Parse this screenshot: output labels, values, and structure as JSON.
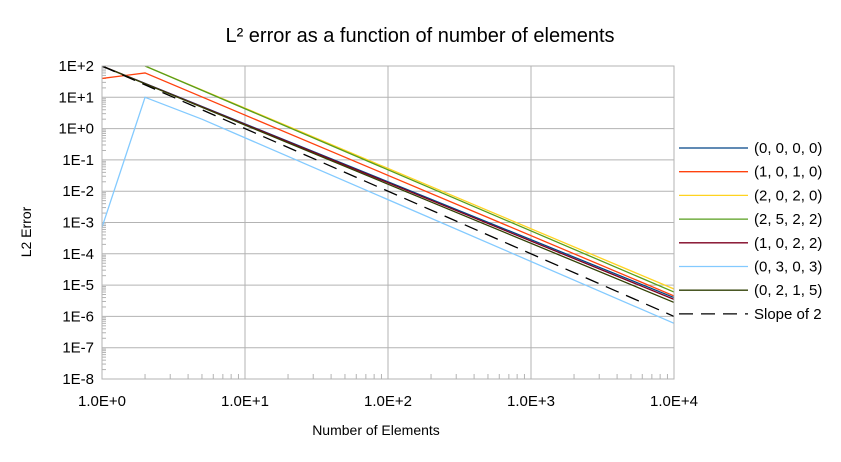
{
  "chart_data": {
    "type": "line",
    "title": "L² error as a function of number of elements",
    "xlabel": "Number of Elements",
    "ylabel": "L2 Error",
    "x_scale": "log",
    "y_scale": "log",
    "xlim": [
      1,
      10000
    ],
    "ylim": [
      1e-08,
      100
    ],
    "x_ticks": [
      {
        "value": 1,
        "label": "1.0E+0"
      },
      {
        "value": 10,
        "label": "1.0E+1"
      },
      {
        "value": 100,
        "label": "1.0E+2"
      },
      {
        "value": 1000,
        "label": "1.0E+3"
      },
      {
        "value": 10000,
        "label": "1.0E+4"
      }
    ],
    "y_ticks": [
      {
        "value": 100,
        "label": "1E+2"
      },
      {
        "value": 10,
        "label": "1E+1"
      },
      {
        "value": 1,
        "label": "1E+0"
      },
      {
        "value": 0.1,
        "label": "1E-1"
      },
      {
        "value": 0.01,
        "label": "1E-2"
      },
      {
        "value": 0.001,
        "label": "1E-3"
      },
      {
        "value": 0.0001,
        "label": "1E-4"
      },
      {
        "value": 1e-05,
        "label": "1E-5"
      },
      {
        "value": 1e-06,
        "label": "1E-6"
      },
      {
        "value": 1e-07,
        "label": "1E-7"
      },
      {
        "value": 1e-08,
        "label": "1E-8"
      }
    ],
    "grid": true,
    "legend_position": "right",
    "series": [
      {
        "name": "(0, 0, 0, 0)",
        "color": "#004586",
        "dash": "solid",
        "points": [
          [
            1,
            100
          ],
          [
            10000,
            4e-06
          ]
        ]
      },
      {
        "name": "(1, 0, 1, 0)",
        "color": "#ff420e",
        "dash": "solid",
        "points": [
          [
            1,
            40
          ],
          [
            2,
            60
          ],
          [
            10000,
            4.5e-06
          ]
        ]
      },
      {
        "name": "(2, 0, 2, 0)",
        "color": "#ffd320",
        "dash": "solid",
        "points": [
          [
            2,
            100
          ],
          [
            10000,
            7.5e-06
          ]
        ]
      },
      {
        "name": "(2, 5, 2, 2)",
        "color": "#579d1c",
        "dash": "solid",
        "points": [
          [
            2,
            100
          ],
          [
            10000,
            6e-06
          ]
        ]
      },
      {
        "name": "(1, 0, 2, 2)",
        "color": "#7e0021",
        "dash": "solid",
        "points": [
          [
            1,
            100
          ],
          [
            10000,
            3.5e-06
          ]
        ]
      },
      {
        "name": "(0, 3, 0, 3)",
        "color": "#83caff",
        "dash": "solid",
        "points": [
          [
            1,
            0.0007
          ],
          [
            2,
            10
          ],
          [
            5,
            2
          ],
          [
            10000,
            6e-07
          ]
        ]
      },
      {
        "name": "(0, 2, 1, 5)",
        "color": "#314004",
        "dash": "solid",
        "points": [
          [
            1,
            100
          ],
          [
            10000,
            2.8e-06
          ]
        ]
      },
      {
        "name": "Slope of 2",
        "color": "#000000",
        "dash": "dashed",
        "points": [
          [
            1,
            100
          ],
          [
            10000,
            1e-06
          ]
        ]
      }
    ]
  }
}
